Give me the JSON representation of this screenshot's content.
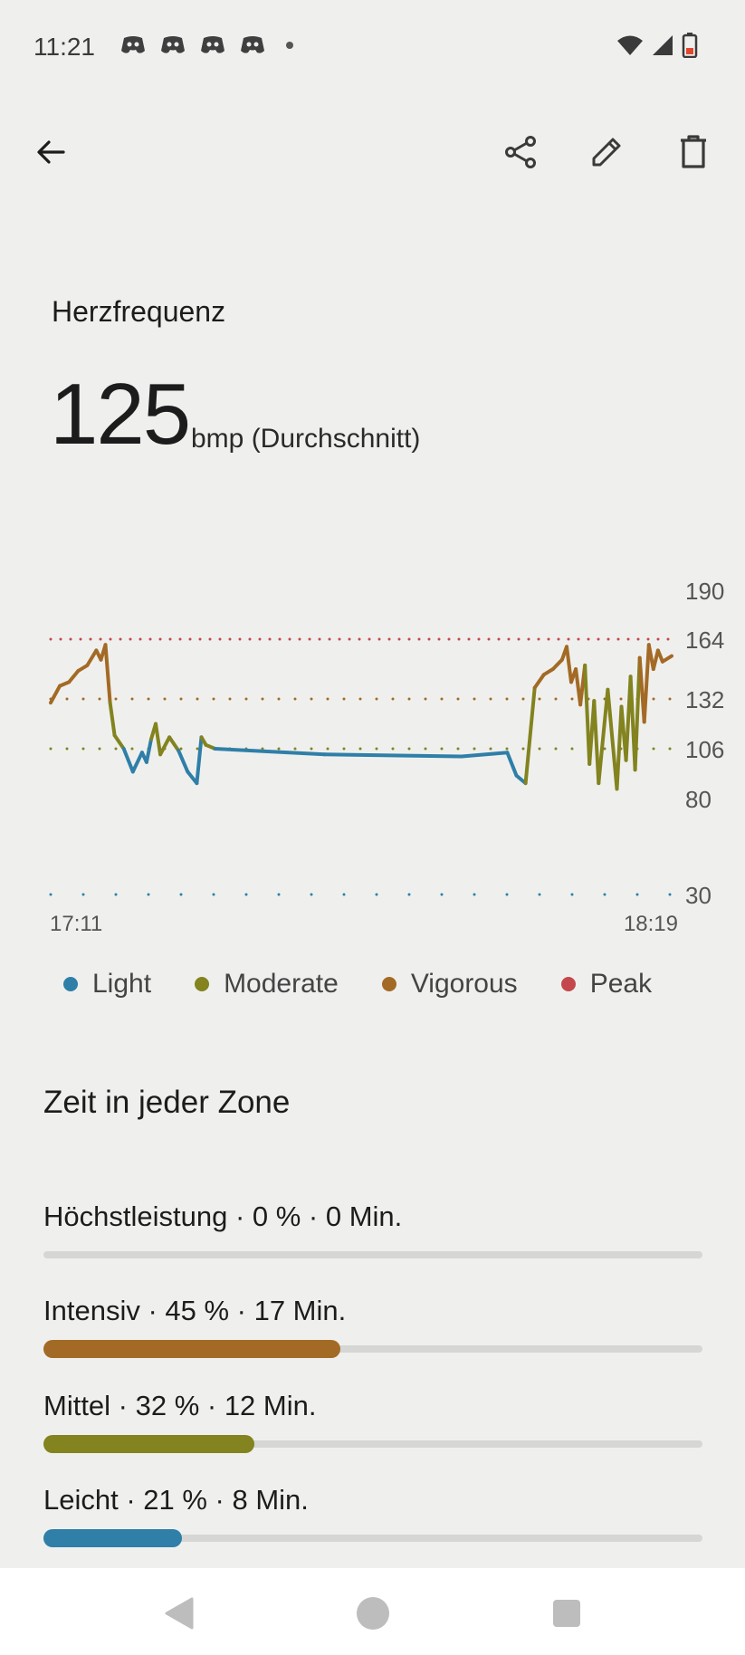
{
  "status_bar": {
    "time": "11:21",
    "notification_icons": [
      "discord-icon",
      "discord-icon",
      "discord-icon",
      "discord-icon"
    ],
    "system_icons": [
      "wifi-icon",
      "signal-icon",
      "battery-low-icon"
    ]
  },
  "toolbar": {
    "icons": [
      "back-arrow-icon",
      "share-icon",
      "edit-pencil-icon",
      "delete-trash-icon"
    ]
  },
  "metric": {
    "title": "Herzfrequenz",
    "value": "125",
    "unit": "bmp (Durchschnitt)"
  },
  "chart_data": {
    "type": "line",
    "x_start_label": "17:11",
    "x_end_label": "18:19",
    "y_tick_labels": [
      "190",
      "164",
      "132",
      "106",
      "80",
      "30"
    ],
    "y_ticks": [
      190,
      164,
      132,
      106,
      80,
      30
    ],
    "zone_thresholds": [
      {
        "value": 164,
        "zone": "Peak"
      },
      {
        "value": 132,
        "zone": "Vigorous"
      },
      {
        "value": 106,
        "zone": "Moderate"
      },
      {
        "value": 30,
        "zone": "Light"
      }
    ],
    "legend_position": "bottom",
    "series": [
      {
        "name": "Herzfrequenz",
        "x_minutes": [
          0,
          1,
          2,
          3,
          4,
          5,
          5.5,
          6,
          6.5,
          7,
          8,
          9,
          10,
          10.5,
          11,
          11.5,
          12,
          13,
          14,
          15,
          16,
          16.5,
          17,
          18,
          30,
          45,
          50,
          51,
          52,
          53,
          54,
          55,
          56,
          56.5,
          57,
          57.5,
          58,
          58.5,
          59,
          59.5,
          60,
          61,
          62,
          62.5,
          63,
          63.5,
          64,
          64.5,
          65,
          65.5,
          66,
          66.5,
          67,
          68
        ],
        "values": [
          130,
          139,
          141,
          147,
          150,
          158,
          153,
          161,
          130,
          113,
          106,
          94,
          104,
          99,
          111,
          119,
          103,
          112,
          105,
          94,
          88,
          112,
          108,
          106,
          103,
          102,
          104,
          92,
          88,
          138,
          145,
          148,
          153,
          160,
          141,
          148,
          129,
          150,
          98,
          131,
          88,
          137,
          85,
          128,
          100,
          144,
          95,
          154,
          120,
          161,
          148,
          158,
          152,
          155
        ]
      }
    ]
  },
  "legend": [
    {
      "label": "Light",
      "color": "#2f7fa8"
    },
    {
      "label": "Moderate",
      "color": "#83831f"
    },
    {
      "label": "Vigorous",
      "color": "#a36a25"
    },
    {
      "label": "Peak",
      "color": "#c4474b"
    }
  ],
  "zones": {
    "title": "Zeit in jeder Zone",
    "items": [
      {
        "label": "Höchstleistung · 0 % · 0 Min.",
        "fraction": 0.0,
        "color": "#c4474b"
      },
      {
        "label": "Intensiv · 45 % · 17 Min.",
        "fraction": 0.45,
        "color": "#a36a25"
      },
      {
        "label": "Mittel · 32 % · 12 Min.",
        "fraction": 0.32,
        "color": "#83831f"
      },
      {
        "label": "Leicht · 21 % · 8 Min.",
        "fraction": 0.21,
        "color": "#2f7fa8"
      }
    ]
  },
  "nav_bar": {
    "icons": [
      "nav-back-icon",
      "nav-home-icon",
      "nav-recents-icon"
    ]
  }
}
